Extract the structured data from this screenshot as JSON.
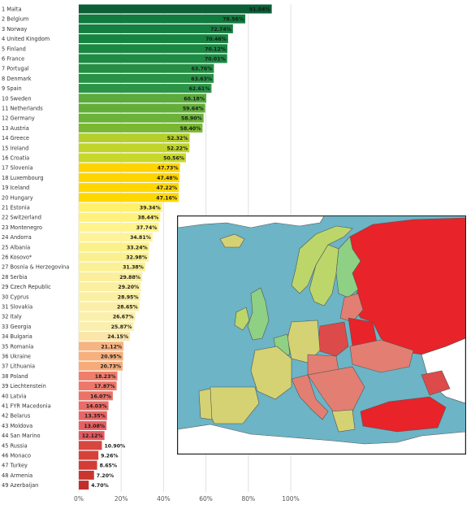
{
  "chart_data": {
    "type": "bar",
    "orientation": "horizontal",
    "xlim": [
      0,
      100
    ],
    "x_ticks": [
      "0%",
      "20%",
      "40%",
      "60%",
      "80%",
      "100%"
    ],
    "grid": true,
    "legend": "none",
    "categories": [
      "1 Malta",
      "2 Belgium",
      "3 Norway",
      "4 United Kingdom",
      "5 Finland",
      "6 France",
      "7 Portugal",
      "8 Denmark",
      "9 Spain",
      "10 Sweden",
      "11 Netherlands",
      "12 Germany",
      "13 Austria",
      "14 Greece",
      "15 Ireland",
      "16 Croatia",
      "17 Slovenia",
      "18 Luxembourg",
      "19 Iceland",
      "20 Hungary",
      "21 Estonia",
      "22 Switzerland",
      "23 Montenegro",
      "24 Andorra",
      "25 Albania",
      "26 Kosovo*",
      "27 Bosnia & Herzegovina",
      "28 Serbia",
      "29 Czech Republic",
      "30 Cyprus",
      "31 Slovakia",
      "32 Italy",
      "33 Georgia",
      "34 Bulgaria",
      "35 Romania",
      "36 Ukraine",
      "37 Lithuania",
      "38 Poland",
      "39 Liechtenstein",
      "40 Latvia",
      "41 FYR Macedonia",
      "42 Belarus",
      "43 Moldova",
      "44 San Marino",
      "45 Russia",
      "46 Monaco",
      "47 Turkey",
      "48 Armenia",
      "49 Azerbaijan"
    ],
    "values": [
      91.04,
      78.56,
      72.74,
      70.46,
      70.12,
      70.01,
      63.76,
      63.63,
      62.61,
      60.18,
      59.64,
      58.9,
      58.4,
      52.32,
      52.22,
      50.56,
      47.73,
      47.48,
      47.22,
      47.16,
      39.34,
      38.44,
      37.74,
      34.81,
      33.24,
      32.98,
      31.38,
      29.88,
      29.2,
      28.95,
      28.65,
      26.67,
      25.87,
      24.15,
      21.12,
      20.95,
      20.73,
      18.23,
      17.87,
      16.07,
      14.03,
      13.35,
      13.08,
      12.12,
      10.9,
      9.26,
      8.65,
      7.2,
      4.7
    ],
    "value_labels": [
      "91.04%",
      "78.56%",
      "72.74%",
      "70.46%",
      "70.12%",
      "70.01%",
      "63.76%",
      "63.63%",
      "62.61%",
      "60.18%",
      "59.64%",
      "58.90%",
      "58.40%",
      "52.32%",
      "52.22%",
      "50.56%",
      "47.73%",
      "47.48%",
      "47.22%",
      "47.16%",
      "39.34%",
      "38.44%",
      "37.74%",
      "34.81%",
      "33.24%",
      "32.98%",
      "31.38%",
      "29.88%",
      "29.20%",
      "28.95%",
      "28.65%",
      "26.67%",
      "25.87%",
      "24.15%",
      "21.12%",
      "20.95%",
      "20.73%",
      "18.23%",
      "17.87%",
      "16.07%",
      "14.03%",
      "13.35%",
      "13.08%",
      "12.12%",
      "10.90%",
      "9.26%",
      "8.65%",
      "7.20%",
      "4.70%"
    ],
    "colors": [
      "#0b5e36",
      "#117a3e",
      "#147f40",
      "#178341",
      "#1a8743",
      "#1d8b44",
      "#258e44",
      "#289145",
      "#2b9446",
      "#5aab3c",
      "#63ae3a",
      "#6bb238",
      "#7ab733",
      "#b7cf2a",
      "#c0d42a",
      "#c8d82a",
      "#ffd400",
      "#ffd500",
      "#ffd600",
      "#ffd700",
      "#fff06a",
      "#fff17a",
      "#fff38c",
      "#fff39a",
      "#fbf08a",
      "#fbf090",
      "#fbf096",
      "#fbef9c",
      "#fbefa0",
      "#fbefa4",
      "#fbefa8",
      "#fbefac",
      "#fbefb0",
      "#fbe6a8",
      "#f5b482",
      "#f5b07e",
      "#f5ac7a",
      "#ef7e6c",
      "#ed786a",
      "#eb7268",
      "#e96c66",
      "#e76664",
      "#e56062",
      "#e35a60",
      "#d8473f",
      "#d5423a",
      "#d23d35",
      "#c93630",
      "#c0302b"
    ]
  },
  "map": {
    "colors": {
      "sea": "#6cb4c6",
      "land_nodata": "#ffffff",
      "red": "#e8232a",
      "pink": "#e27f72",
      "mid_red": "#dc4a4a",
      "khaki": "#d4d273",
      "lightgreen": "#8ed084",
      "yellowgreen": "#bcd66a"
    }
  }
}
